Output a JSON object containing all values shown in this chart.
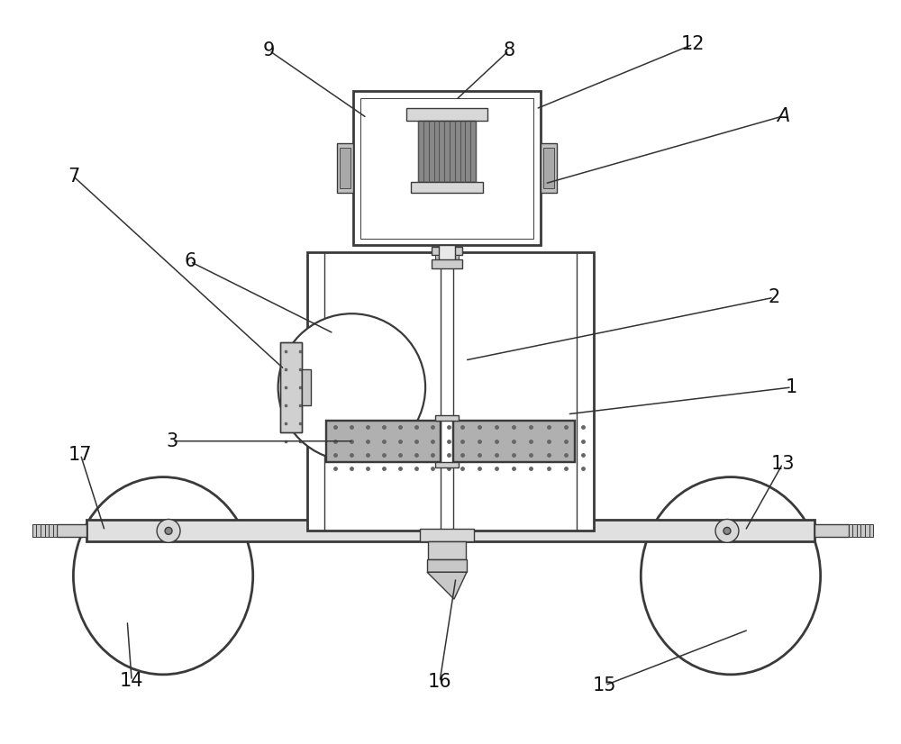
{
  "bg_color": "#ffffff",
  "line_color": "#3a3a3a",
  "figsize": [
    10.0,
    8.26
  ],
  "dpi": 100,
  "ann_color": "#333333",
  "ann_lw": 1.1,
  "lw_main": 1.6,
  "lw_thick": 2.0,
  "lw_thin": 1.0,
  "fs": 15
}
